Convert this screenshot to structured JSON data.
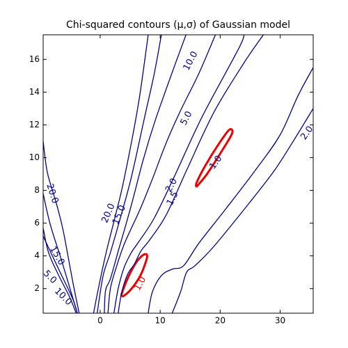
{
  "chart_data": {
    "type": "contour",
    "title": "Chi-squared contours (μ,σ) of Gaussian model",
    "xlabel": "",
    "ylabel": "",
    "xlim": [
      -9.5,
      35.5
    ],
    "ylim": [
      0.5,
      17.5
    ],
    "xticks": [
      0,
      10,
      20,
      30
    ],
    "yticks": [
      2,
      4,
      6,
      8,
      10,
      12,
      14,
      16
    ],
    "grid": false,
    "colors": {
      "contours": "#00008b",
      "highlight": "#ee0000",
      "axes": "#000000"
    },
    "contours": [
      {
        "level": 1.0,
        "color": "#ee0000",
        "points": [
          [
            3.7,
            1.5
          ],
          [
            5.0,
            1.9
          ],
          [
            6.7,
            2.8
          ],
          [
            7.8,
            3.9
          ],
          [
            7.4,
            4.1
          ],
          [
            6.2,
            3.7
          ],
          [
            4.8,
            2.8
          ],
          [
            3.6,
            1.7
          ],
          [
            3.7,
            1.5
          ]
        ]
      },
      {
        "level": 1.0,
        "color": "#ee0000",
        "points": [
          [
            16.0,
            8.2
          ],
          [
            17.8,
            9.0
          ],
          [
            20.6,
            10.6
          ],
          [
            22.0,
            11.5
          ],
          [
            21.5,
            11.7
          ],
          [
            19.7,
            10.8
          ],
          [
            17.5,
            9.5
          ],
          [
            16.1,
            8.5
          ],
          [
            16.0,
            8.2
          ]
        ]
      },
      {
        "level": 1.5,
        "color": "#00008b",
        "points": [
          [
            3.0,
            0.5
          ],
          [
            3.6,
            1.8
          ],
          [
            4.6,
            2.9
          ],
          [
            5.7,
            3.5
          ],
          [
            6.8,
            4.3
          ],
          [
            8.3,
            5.0
          ],
          [
            11.0,
            6.5
          ],
          [
            14.5,
            9.3
          ],
          [
            19.0,
            12.8
          ],
          [
            24.0,
            15.8
          ],
          [
            27.2,
            17.5
          ]
        ]
      },
      {
        "level": 2.0,
        "color": "#00008b",
        "points": [
          [
            2.3,
            0.5
          ],
          [
            3.0,
            2.0
          ],
          [
            4.0,
            3.3
          ],
          [
            5.2,
            4.2
          ],
          [
            6.5,
            4.9
          ],
          [
            9.0,
            6.3
          ],
          [
            12.3,
            8.8
          ],
          [
            17.0,
            12.5
          ],
          [
            23.0,
            16.6
          ],
          [
            24.0,
            17.5
          ]
        ]
      },
      {
        "level": 2.0,
        "color": "#00008b",
        "points": [
          [
            8.0,
            0.5
          ],
          [
            8.7,
            1.8
          ],
          [
            10.2,
            2.8
          ],
          [
            12.1,
            3.2
          ],
          [
            13.9,
            3.4
          ],
          [
            16.5,
            4.8
          ],
          [
            21.0,
            6.9
          ],
          [
            26.0,
            9.3
          ],
          [
            30.0,
            11.4
          ],
          [
            33.0,
            13.8
          ],
          [
            35.5,
            15.5
          ]
        ]
      },
      {
        "level": 2.0,
        "color": "#00008b",
        "points": [
          [
            12.0,
            0.5
          ],
          [
            13.4,
            1.8
          ],
          [
            14.4,
            3.0
          ],
          [
            15.8,
            3.4
          ],
          [
            19.0,
            4.6
          ],
          [
            25.0,
            7.3
          ],
          [
            29.0,
            9.2
          ],
          [
            32.0,
            10.9
          ],
          [
            35.5,
            13.0
          ]
        ]
      },
      {
        "level": 5.0,
        "color": "#00008b",
        "points": [
          [
            1.3,
            0.5
          ],
          [
            1.7,
            2.0
          ],
          [
            2.6,
            3.2
          ],
          [
            4.1,
            4.8
          ],
          [
            6.6,
            6.8
          ],
          [
            8.6,
            8.6
          ],
          [
            11.0,
            10.9
          ],
          [
            13.3,
            12.8
          ],
          [
            16.4,
            15.1
          ],
          [
            19.2,
            17.5
          ]
        ]
      },
      {
        "level": 10.0,
        "color": "#00008b",
        "points": [
          [
            0.7,
            0.5
          ],
          [
            0.9,
            1.9
          ],
          [
            1.7,
            2.6
          ],
          [
            3.1,
            4.4
          ],
          [
            5.2,
            7.1
          ],
          [
            7.2,
            9.9
          ],
          [
            9.2,
            12.3
          ],
          [
            11.9,
            15.1
          ],
          [
            14.3,
            17.5
          ]
        ]
      },
      {
        "level": 15.0,
        "color": "#00008b",
        "points": [
          [
            -0.5,
            0.5
          ],
          [
            0.5,
            2.8
          ],
          [
            1.7,
            4.2
          ],
          [
            3.2,
            6.1
          ],
          [
            5.2,
            8.8
          ],
          [
            7.3,
            12.3
          ],
          [
            9.0,
            15.1
          ],
          [
            10.2,
            17.5
          ]
        ]
      },
      {
        "level": 20.0,
        "color": "#00008b",
        "points": [
          [
            -1.1,
            0.5
          ],
          [
            -0.3,
            2.0
          ],
          [
            1.0,
            4.2
          ],
          [
            2.5,
            6.4
          ],
          [
            3.7,
            8.2
          ],
          [
            5.3,
            11.1
          ],
          [
            6.6,
            13.8
          ],
          [
            8.0,
            17.5
          ]
        ]
      },
      {
        "level": 20.0,
        "color": "#00008b",
        "points": [
          [
            -9.5,
            11.0
          ],
          [
            -8.8,
            9.1
          ],
          [
            -7.3,
            7.2
          ],
          [
            -6.2,
            5.6
          ],
          [
            -4.5,
            2.3
          ],
          [
            -3.5,
            0.5
          ]
        ]
      },
      {
        "level": 15.0,
        "color": "#00008b",
        "points": [
          [
            -9.5,
            7.8
          ],
          [
            -8.3,
            5.9
          ],
          [
            -6.5,
            3.8
          ],
          [
            -5.1,
            2.1
          ],
          [
            -3.8,
            0.5
          ]
        ]
      },
      {
        "level": 5.0,
        "color": "#00008b",
        "points": [
          [
            -9.5,
            5.7
          ],
          [
            -8.6,
            4.2
          ],
          [
            -6.9,
            2.8
          ],
          [
            -5.1,
            1.5
          ],
          [
            -4.0,
            0.5
          ]
        ]
      },
      {
        "level": 10.0,
        "color": "#00008b",
        "points": [
          [
            -9.5,
            5.2
          ],
          [
            -6.8,
            3.1
          ],
          [
            -4.6,
            1.4
          ],
          [
            -3.8,
            0.5
          ]
        ]
      }
    ],
    "contour_labels": [
      {
        "text": "1.0",
        "x": 6.7,
        "y": 2.3,
        "angle": -62,
        "color": "#ee0000"
      },
      {
        "text": "1.0",
        "x": 19.3,
        "y": 9.7,
        "angle": -55,
        "color": "#00008b"
      },
      {
        "text": "1.5",
        "x": 12.1,
        "y": 7.5,
        "angle": -62,
        "color": "#00008b"
      },
      {
        "text": "2.0",
        "x": 11.9,
        "y": 8.3,
        "angle": -62,
        "color": "#00008b"
      },
      {
        "text": "2.0",
        "x": 34.5,
        "y": 11.5,
        "angle": -55,
        "color": "#00008b"
      },
      {
        "text": "5.0",
        "x": 14.4,
        "y": 12.4,
        "angle": -62,
        "color": "#00008b"
      },
      {
        "text": "10.0",
        "x": 15.1,
        "y": 15.9,
        "angle": -62,
        "color": "#00008b"
      },
      {
        "text": "15.0",
        "x": 3.2,
        "y": 6.5,
        "angle": -67,
        "color": "#00008b"
      },
      {
        "text": "20.0",
        "x": 1.4,
        "y": 6.6,
        "angle": -67,
        "color": "#00008b"
      },
      {
        "text": "20.0",
        "x": -8.0,
        "y": 7.8,
        "angle": 72,
        "color": "#00008b"
      },
      {
        "text": "15.0",
        "x": -7.2,
        "y": 4.0,
        "angle": 60,
        "color": "#00008b"
      },
      {
        "text": "5.0",
        "x": -8.4,
        "y": 2.7,
        "angle": 45,
        "color": "#00008b"
      },
      {
        "text": "10.0",
        "x": -6.2,
        "y": 1.5,
        "angle": 45,
        "color": "#00008b"
      }
    ]
  }
}
